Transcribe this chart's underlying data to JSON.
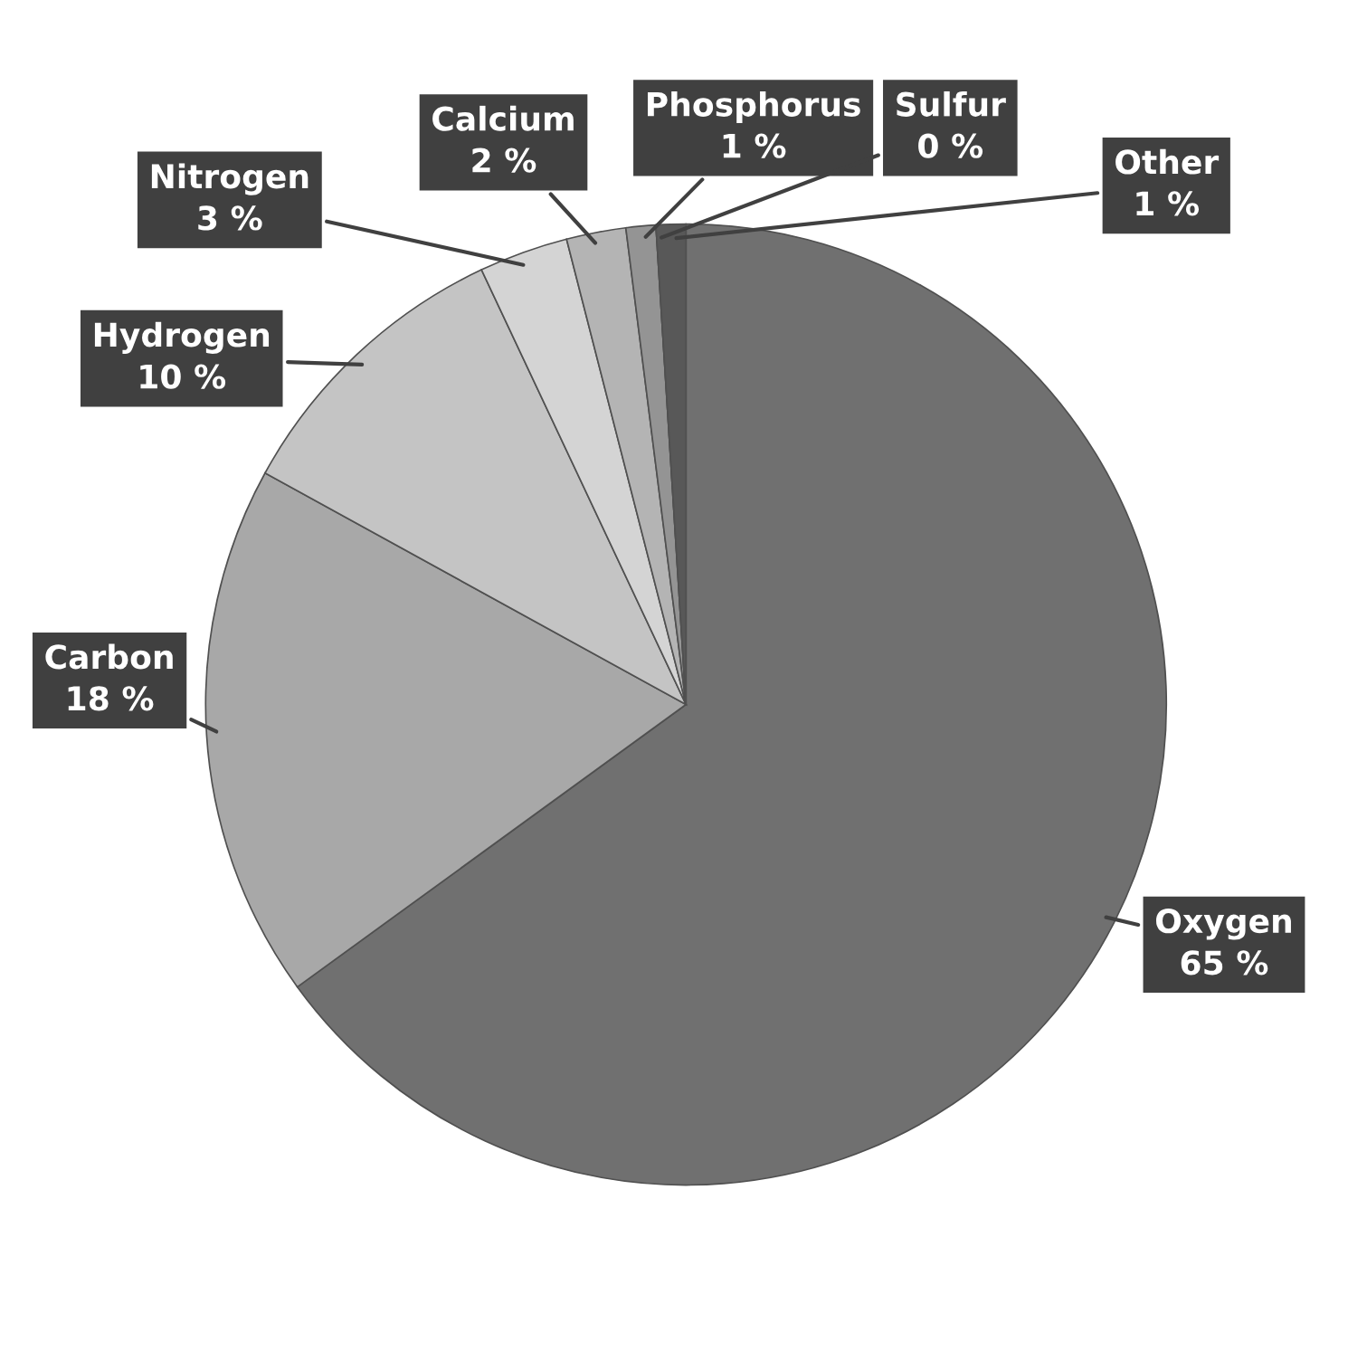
{
  "chart_data": {
    "type": "pie",
    "categories": [
      "Oxygen",
      "Carbon",
      "Hydrogen",
      "Nitrogen",
      "Calcium",
      "Phosphorus",
      "Sulfur",
      "Other"
    ],
    "values": [
      65,
      18,
      10,
      3,
      2,
      1,
      0,
      1
    ],
    "value_labels": [
      "65 %",
      "18 %",
      "10 %",
      "3 %",
      "2 %",
      "1 %",
      "0 %",
      "1 %"
    ],
    "colors": [
      "#707070",
      "#a8a8a8",
      "#c4c4c4",
      "#d4d4d4",
      "#b4b4b4",
      "#949494",
      "#7c7c7c",
      "#585858"
    ]
  }
}
